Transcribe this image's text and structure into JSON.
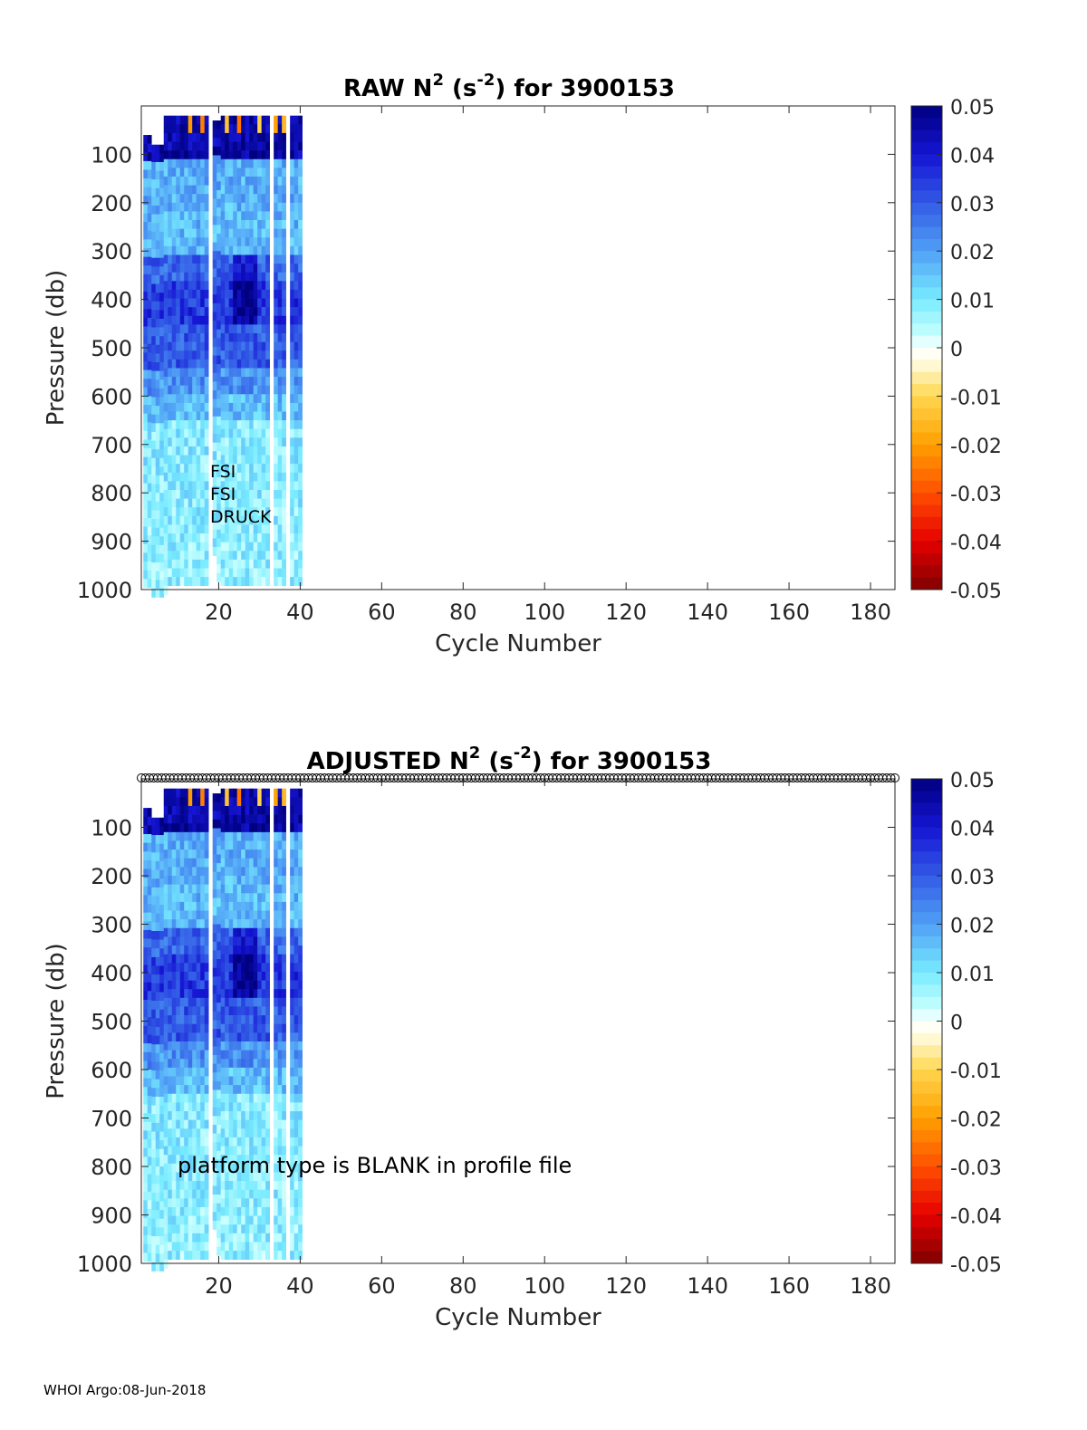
{
  "colorbar": {
    "ticks": [
      "0.05",
      "0.04",
      "0.03",
      "0.02",
      "0.01",
      "0",
      "-0.01",
      "-0.02",
      "-0.03",
      "-0.04",
      "-0.05"
    ],
    "range": [
      -0.05,
      0.05
    ]
  },
  "chart_data": [
    {
      "type": "heatmap",
      "title": {
        "prefix": "RAW N",
        "exp": "2",
        "mid": " (s",
        "unit_exp": "-2",
        "suffix": ") for 3900153"
      },
      "xlabel": "Cycle Number",
      "ylabel": "Pressure (db)",
      "xlim": [
        1,
        186
      ],
      "ylim": [
        1000,
        0
      ],
      "xticks": [
        20,
        40,
        60,
        80,
        100,
        120,
        140,
        160,
        180
      ],
      "yticks": [
        100,
        200,
        300,
        400,
        500,
        600,
        700,
        800,
        900,
        1000
      ],
      "clim": [
        -0.05,
        0.05
      ],
      "grid": false,
      "data_cycles": [
        2,
        40
      ],
      "missing_cycles": [
        18,
        33,
        37
      ],
      "annotation": [
        "FSI",
        "FSI",
        "DRUCK"
      ]
    },
    {
      "type": "heatmap",
      "title": {
        "prefix": "ADJUSTED N",
        "exp": "2",
        "mid": " (s",
        "unit_exp": "-2",
        "suffix": ") for 3900153"
      },
      "xlabel": "Cycle Number",
      "ylabel": "Pressure (db)",
      "xlim": [
        1,
        186
      ],
      "ylim": [
        1000,
        0
      ],
      "xticks": [
        20,
        40,
        60,
        80,
        100,
        120,
        140,
        160,
        180
      ],
      "yticks": [
        100,
        200,
        300,
        400,
        500,
        600,
        700,
        800,
        900,
        1000
      ],
      "clim": [
        -0.05,
        0.05
      ],
      "grid": false,
      "data_cycles": [
        2,
        40
      ],
      "missing_cycles": [
        18,
        33,
        37
      ],
      "top_markers": "open circles at every cycle 1-186",
      "annotation": [
        "platform type is BLANK in profile file"
      ]
    }
  ],
  "footer": "WHOI Argo:08-Jun-2018"
}
